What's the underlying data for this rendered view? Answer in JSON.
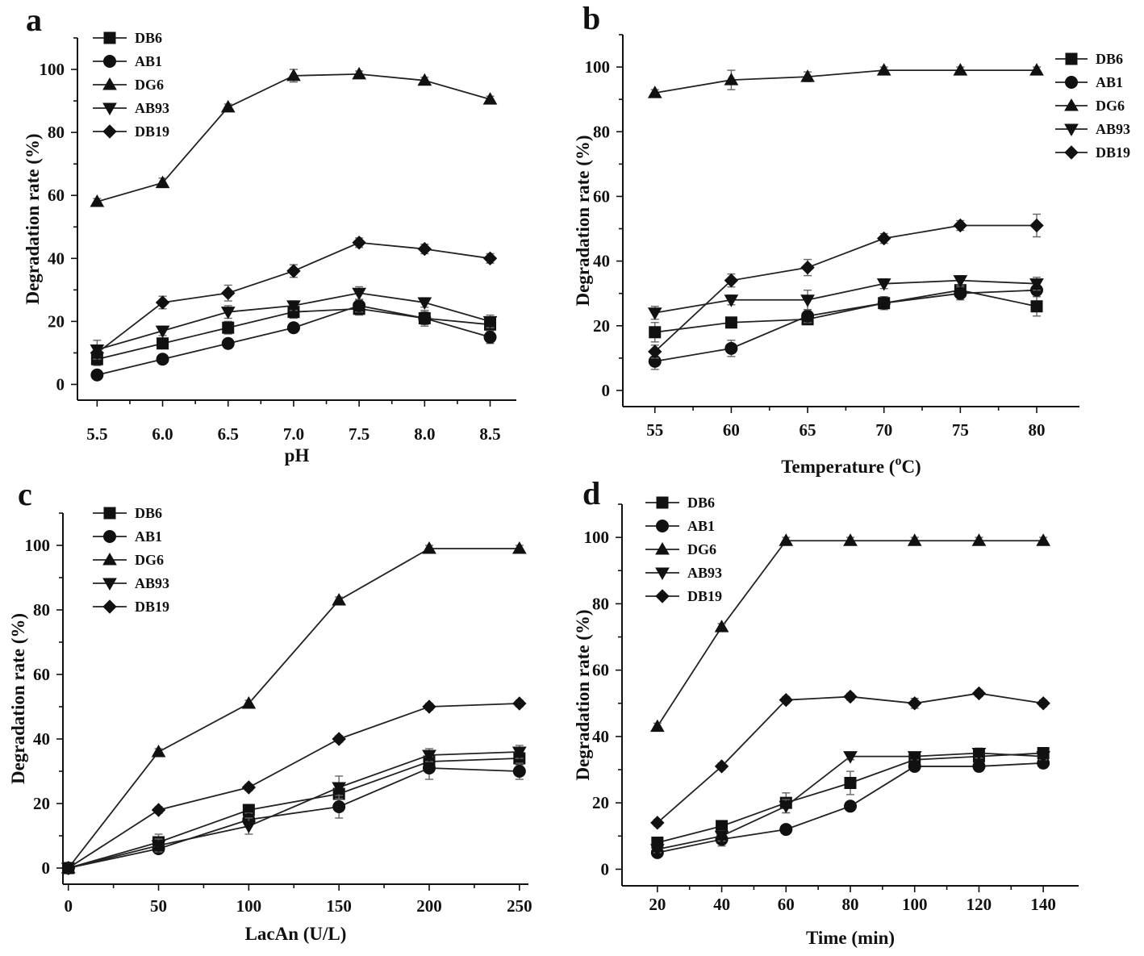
{
  "marker_color": "#111111",
  "line_color": "#222222",
  "legend_series": [
    {
      "name": "DB6",
      "marker": "square"
    },
    {
      "name": "AB1",
      "marker": "circle"
    },
    {
      "name": "DG6",
      "marker": "triangle-up"
    },
    {
      "name": "AB93",
      "marker": "triangle-down"
    },
    {
      "name": "DB19",
      "marker": "diamond"
    }
  ],
  "chart_data": [
    {
      "panel": "a",
      "type": "line",
      "xlabel": "pH",
      "ylabel": "Degradation rate (%)",
      "x": [
        5.5,
        6.0,
        6.5,
        7.0,
        7.5,
        8.0,
        8.5
      ],
      "xticks": [
        "5.5",
        "6.0",
        "6.5",
        "7.0",
        "7.5",
        "8.0",
        "8.5"
      ],
      "xlim": [
        5.35,
        8.7
      ],
      "yticks": [
        "0",
        "20",
        "40",
        "60",
        "80",
        "100"
      ],
      "ylim": [
        -5,
        110
      ],
      "legend_position": "top-left",
      "series": [
        {
          "name": "DB6",
          "marker": "square",
          "values": [
            8,
            13,
            18,
            23,
            24,
            21,
            19
          ],
          "errors": [
            2,
            1.5,
            2,
            2,
            2,
            2,
            2
          ]
        },
        {
          "name": "AB1",
          "marker": "circle",
          "values": [
            3,
            8,
            13,
            18,
            25,
            21,
            15
          ],
          "errors": [
            1,
            1.5,
            1.5,
            1.5,
            2,
            2.5,
            2
          ]
        },
        {
          "name": "DG6",
          "marker": "triangle-up",
          "values": [
            58,
            64,
            88,
            98,
            98.5,
            96.5,
            90.5
          ],
          "errors": [
            1,
            1.5,
            1,
            2,
            1,
            1,
            1
          ]
        },
        {
          "name": "AB93",
          "marker": "triangle-down",
          "values": [
            11,
            17,
            23,
            25,
            29,
            26,
            20
          ],
          "errors": [
            3,
            1.5,
            2,
            1.5,
            2,
            1.5,
            2
          ]
        },
        {
          "name": "DB19",
          "marker": "diamond",
          "values": [
            10,
            26,
            29,
            36,
            45,
            43,
            40
          ],
          "errors": [
            1,
            2,
            2.5,
            2,
            1.5,
            1.5,
            1.5
          ]
        }
      ]
    },
    {
      "panel": "b",
      "type": "line",
      "xlabel": "Temperature (",
      "xlabel_sup": "o",
      "xlabel_suffix": "C)",
      "ylabel": "Degradation rate (%)",
      "x": [
        55,
        60,
        65,
        70,
        75,
        80
      ],
      "xticks": [
        "55",
        "60",
        "65",
        "70",
        "75",
        "80"
      ],
      "xlim": [
        52.9,
        82.8
      ],
      "yticks": [
        "0",
        "20",
        "40",
        "60",
        "80",
        "100"
      ],
      "ylim": [
        -5,
        110
      ],
      "legend_position": "top-right",
      "series": [
        {
          "name": "DB6",
          "marker": "square",
          "values": [
            18,
            21,
            22,
            27,
            31,
            26
          ],
          "errors": [
            3,
            1,
            1.5,
            2,
            1.5,
            3
          ]
        },
        {
          "name": "AB1",
          "marker": "circle",
          "values": [
            9,
            13,
            23,
            27,
            30,
            31
          ],
          "errors": [
            2.5,
            2.5,
            2,
            2,
            2,
            2
          ]
        },
        {
          "name": "DG6",
          "marker": "triangle-up",
          "values": [
            92,
            96,
            97,
            99,
            99,
            99
          ],
          "errors": [
            1,
            3,
            1.5,
            1,
            1,
            1
          ]
        },
        {
          "name": "AB93",
          "marker": "triangle-down",
          "values": [
            24,
            28,
            28,
            33,
            34,
            33
          ],
          "errors": [
            2,
            1.5,
            3,
            1.5,
            1.5,
            2
          ]
        },
        {
          "name": "DB19",
          "marker": "diamond",
          "values": [
            12,
            34,
            38,
            47,
            51,
            51
          ],
          "errors": [
            2,
            2,
            2.5,
            1.5,
            1.5,
            3.5
          ]
        }
      ]
    },
    {
      "panel": "c",
      "type": "line",
      "xlabel": "LacAn (U/L)",
      "ylabel": "Degradation rate (%)",
      "x": [
        0,
        50,
        100,
        150,
        200,
        250
      ],
      "xticks": [
        "0",
        "50",
        "100",
        "150",
        "200",
        "250"
      ],
      "xlim": [
        -3,
        255
      ],
      "yticks": [
        "0",
        "20",
        "40",
        "60",
        "80",
        "100"
      ],
      "ylim": [
        -5,
        110
      ],
      "legend_position": "top-left",
      "series": [
        {
          "name": "DB6",
          "marker": "square",
          "values": [
            0,
            8,
            18,
            23,
            33,
            34
          ],
          "errors": [
            0,
            2.5,
            1.5,
            2.5,
            2,
            2
          ]
        },
        {
          "name": "AB1",
          "marker": "circle",
          "values": [
            0,
            6,
            15,
            19,
            31,
            30
          ],
          "errors": [
            0,
            1.5,
            2,
            3.5,
            3.5,
            2.5
          ]
        },
        {
          "name": "DG6",
          "marker": "triangle-up",
          "values": [
            0,
            36,
            51,
            83,
            99,
            99
          ],
          "errors": [
            0,
            1,
            1,
            1,
            1,
            1
          ]
        },
        {
          "name": "AB93",
          "marker": "triangle-down",
          "values": [
            0,
            7,
            13,
            25,
            35,
            36
          ],
          "errors": [
            0,
            2,
            2.5,
            3.5,
            2,
            2
          ]
        },
        {
          "name": "DB19",
          "marker": "diamond",
          "values": [
            0,
            18,
            25,
            40,
            50,
            51
          ],
          "errors": [
            0,
            1,
            1,
            1,
            1,
            1
          ]
        }
      ]
    },
    {
      "panel": "d",
      "type": "line",
      "xlabel": "Time (min)",
      "ylabel": "Degradation rate (%)",
      "x": [
        20,
        40,
        60,
        80,
        100,
        120,
        140
      ],
      "xticks": [
        "20",
        "40",
        "60",
        "80",
        "100",
        "120",
        "140"
      ],
      "xlim": [
        9,
        151
      ],
      "yticks": [
        "0",
        "20",
        "40",
        "60",
        "80",
        "100"
      ],
      "ylim": [
        -5,
        110
      ],
      "legend_position": "top-left",
      "series": [
        {
          "name": "DB6",
          "marker": "square",
          "values": [
            8,
            13,
            20,
            26,
            33,
            34,
            35
          ],
          "errors": [
            1,
            1,
            3,
            3.5,
            1.5,
            1.5,
            1.5
          ]
        },
        {
          "name": "AB1",
          "marker": "circle",
          "values": [
            5,
            9,
            12,
            19,
            31,
            31,
            32
          ],
          "errors": [
            1,
            2,
            1,
            1,
            1,
            1.5,
            1.5
          ]
        },
        {
          "name": "DG6",
          "marker": "triangle-up",
          "values": [
            43,
            73,
            99,
            99,
            99,
            99,
            99
          ],
          "errors": [
            1,
            1,
            1,
            1,
            1,
            1,
            1
          ]
        },
        {
          "name": "AB93",
          "marker": "triangle-down",
          "values": [
            6,
            10,
            19,
            34,
            34,
            35,
            34
          ],
          "errors": [
            1,
            1.5,
            2,
            1,
            1,
            1.5,
            1
          ]
        },
        {
          "name": "DB19",
          "marker": "diamond",
          "values": [
            14,
            31,
            51,
            52,
            50,
            53,
            50
          ],
          "errors": [
            1,
            1,
            1,
            1,
            1.5,
            1,
            1
          ]
        }
      ]
    }
  ]
}
